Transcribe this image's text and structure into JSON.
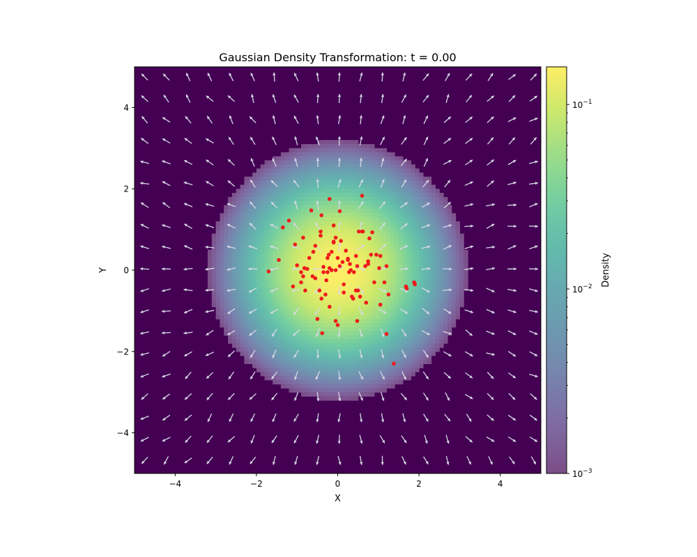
{
  "chart_data": {
    "type": "heatmap",
    "title": "Gaussian Density Transformation: t = 0.00",
    "xlabel": "X",
    "ylabel": "Y",
    "xlim": [
      -5,
      5
    ],
    "ylim": [
      -5,
      5
    ],
    "x_ticks": [
      -4,
      -2,
      0,
      2,
      4
    ],
    "y_ticks": [
      -4,
      -2,
      0,
      2,
      4
    ],
    "x_tick_labels": [
      "−4",
      "−2",
      "0",
      "2",
      "4"
    ],
    "y_tick_labels": [
      "−4",
      "−2",
      "0",
      "2",
      "4"
    ],
    "grid": false,
    "density": {
      "description": "2D Gaussian density, mean (0,0), sigma 1, log color scale clipped below 10^-3",
      "mean": [
        0,
        0
      ],
      "sigma": 1,
      "cells": 100,
      "floor": 0.001,
      "colormap": "viridis",
      "alpha": 0.7
    },
    "colorbar": {
      "label": "Density",
      "scale": "log",
      "range": [
        0.001,
        0.16
      ],
      "major_ticks": [
        {
          "value": 0.1,
          "base": "10",
          "exp": "−1"
        },
        {
          "value": 0.01,
          "base": "10",
          "exp": "−2"
        },
        {
          "value": 0.001,
          "base": "10",
          "exp": "−3"
        }
      ]
    },
    "vector_field": {
      "grid_x": [
        -4.75,
        -4.22,
        -3.68,
        -3.15,
        -2.62,
        -2.09,
        -1.56,
        -1.02,
        -0.49,
        0.04,
        0.57,
        1.1,
        1.63,
        2.17,
        2.7,
        3.23,
        3.76,
        4.29,
        4.82
      ],
      "grid_y": [
        4.75,
        4.22,
        3.7,
        3.18,
        2.65,
        2.13,
        1.6,
        1.08,
        0.56,
        0.03,
        -0.49,
        -1.01,
        -1.54,
        -2.06,
        -2.59,
        -3.11,
        -3.63,
        -4.16,
        -4.68
      ],
      "color": "#d9d9e6"
    },
    "points": {
      "color": "#ee1b1b",
      "x": [
        0.6,
        -0.2,
        -0.65,
        0.05,
        -0.4,
        -1.2,
        -1.35,
        0.85,
        0.52,
        0.6,
        -0.1,
        -1.05,
        -0.85,
        -0.55,
        0.95,
        1.05,
        -0.05,
        -0.1,
        0.78,
        -1.45,
        -1.7,
        -1.0,
        -0.75,
        -0.35,
        0.25,
        0.45,
        0.75,
        -0.2,
        -0.25,
        -0.15,
        -0.6,
        -0.85,
        1.2,
        0.3,
        0.05,
        0.5,
        -0.45,
        0.15,
        0.35,
        0.9,
        -0.4,
        -0.2,
        -0.3,
        -0.55,
        -1.1,
        -0.9,
        -0.8,
        1.05,
        1.15,
        0.55,
        0.7,
        0.15,
        -0.05,
        0.38,
        1.68,
        1.88,
        1.25,
        0.48,
        0.62,
        0.28,
        0.75,
        0.82,
        1.02,
        -0.35,
        -0.15,
        -0.05,
        0.48,
        -0.42,
        -0.42,
        -0.22,
        1.2,
        1.38,
        -0.28,
        -0.5,
        0.0,
        0.2,
        -0.9,
        0.12,
        0.32,
        -0.7,
        0.4,
        0.68,
        -0.25,
        1.7,
        1.9,
        0.25,
        -0.1,
        0.08,
        -0.38,
        -0.62,
        -0.82,
        0.45,
        0.0
      ],
      "y": [
        1.83,
        1.75,
        1.47,
        1.45,
        1.35,
        1.22,
        1.05,
        0.93,
        0.95,
        0.95,
        1.1,
        0.63,
        0.8,
        0.6,
        0.38,
        0.35,
        0.8,
        0.68,
        0.78,
        0.25,
        -0.03,
        0.12,
        0.03,
        0.08,
        0.25,
        0.35,
        0.15,
        0.05,
        -0.05,
        0.45,
        0.45,
        -0.15,
        0.1,
        0.15,
        0.1,
        -0.5,
        -0.5,
        -0.55,
        -0.65,
        -0.3,
        -0.7,
        -0.9,
        -0.6,
        -0.2,
        -0.4,
        -0.3,
        -0.5,
        -0.85,
        -0.3,
        -0.65,
        -0.8,
        -0.35,
        -1.25,
        -0.7,
        -0.4,
        -0.3,
        -0.6,
        -1.25,
        0.95,
        -0.05,
        0.22,
        0.38,
        0.05,
        -0.05,
        0.0,
        0.0,
        0.1,
        0.95,
        0.85,
        0.38,
        -1.57,
        -2.3,
        -0.25,
        -1.2,
        -1.35,
        0.48,
        -0.05,
        0.2,
        0.0,
        0.3,
        -0.05,
        0.1,
        0.3,
        -0.45,
        -0.35,
        0.28,
        0.7,
        0.72,
        -1.55,
        -0.15,
        0.05,
        -0.5,
        0.3
      ]
    }
  }
}
